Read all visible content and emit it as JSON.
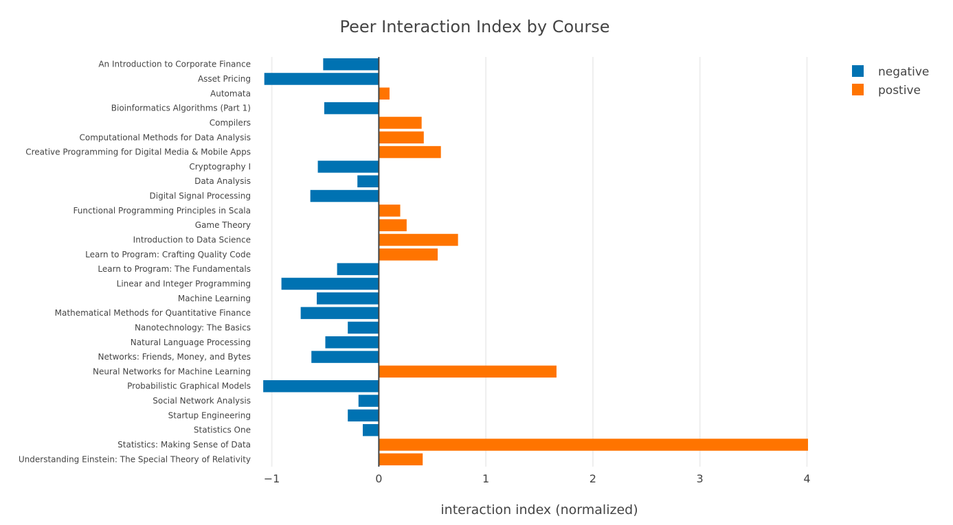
{
  "chart_data": {
    "type": "bar",
    "orientation": "horizontal",
    "title": "Peer Interaction Index by Course",
    "xlabel": "interaction index (normalized)",
    "ylabel": "",
    "xlim": [
      -1.1,
      4.1
    ],
    "xticks": [
      -1,
      0,
      1,
      2,
      3,
      4
    ],
    "xtick_labels": [
      "−1",
      "0",
      "1",
      "2",
      "3",
      "4"
    ],
    "grid": true,
    "legend_position": "top-right",
    "categories": [
      "An Introduction to Corporate Finance",
      "Asset Pricing",
      "Automata",
      "Bioinformatics Algorithms (Part 1)",
      "Compilers",
      "Computational Methods for Data Analysis",
      "Creative Programming for Digital Media & Mobile Apps",
      "Cryptography I",
      "Data Analysis",
      "Digital Signal Processing",
      "Functional Programming Principles in Scala",
      "Game Theory",
      "Introduction to Data Science",
      "Learn to Program: Crafting Quality Code",
      "Learn to Program: The Fundamentals",
      "Linear and Integer Programming",
      "Machine Learning",
      "Mathematical Methods for Quantitative Finance",
      "Nanotechnology: The Basics",
      "Natural Language Processing",
      "Networks: Friends, Money, and Bytes",
      "Neural Networks for Machine Learning",
      "Probabilistic Graphical Models",
      "Social Network Analysis",
      "Startup Engineering",
      "Statistics One",
      "Statistics: Making Sense of Data",
      "Understanding Einstein: The Special Theory of Relativity"
    ],
    "values": [
      -0.52,
      -1.07,
      0.1,
      -0.51,
      0.4,
      0.42,
      0.58,
      -0.57,
      -0.2,
      -0.64,
      0.2,
      0.26,
      0.74,
      0.55,
      -0.39,
      -0.91,
      -0.58,
      -0.73,
      -0.29,
      -0.5,
      -0.63,
      1.66,
      -1.08,
      -0.19,
      -0.29,
      -0.15,
      4.01,
      0.41
    ],
    "series": [
      {
        "name": "negative",
        "color": "#0072b2"
      },
      {
        "name": "postive",
        "color": "#ff7400"
      }
    ]
  }
}
